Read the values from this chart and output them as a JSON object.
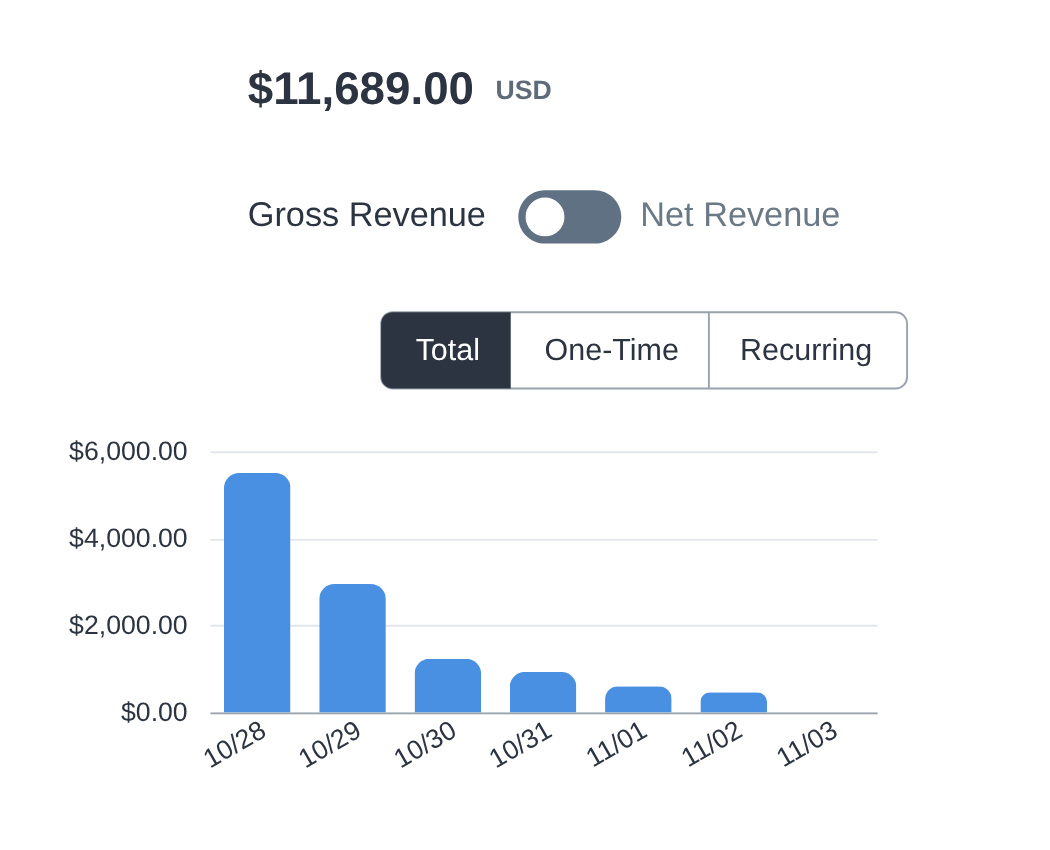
{
  "chart_data": {
    "type": "bar",
    "title": "$11,689.00",
    "subtitle": "USD",
    "annotations": [
      "Gross Revenue",
      "Net Revenue",
      "Total",
      "One-Time",
      "Recurring"
    ],
    "categories": [
      "10/28",
      "10/29",
      "10/30",
      "10/31",
      "11/01",
      "11/02",
      "11/03"
    ],
    "values": [
      5500,
      2950,
      1230,
      930,
      600,
      460,
      null
    ],
    "color": "#4a90e2",
    "ylim": [
      0,
      6000
    ],
    "yticks": [
      {
        "value": 0,
        "label": "$0.00"
      },
      {
        "value": 2000,
        "label": "$2,000.00"
      },
      {
        "value": 4000,
        "label": "$4,000.00"
      },
      {
        "value": 6000,
        "label": "$6,000.00"
      }
    ],
    "grid": "y"
  }
}
